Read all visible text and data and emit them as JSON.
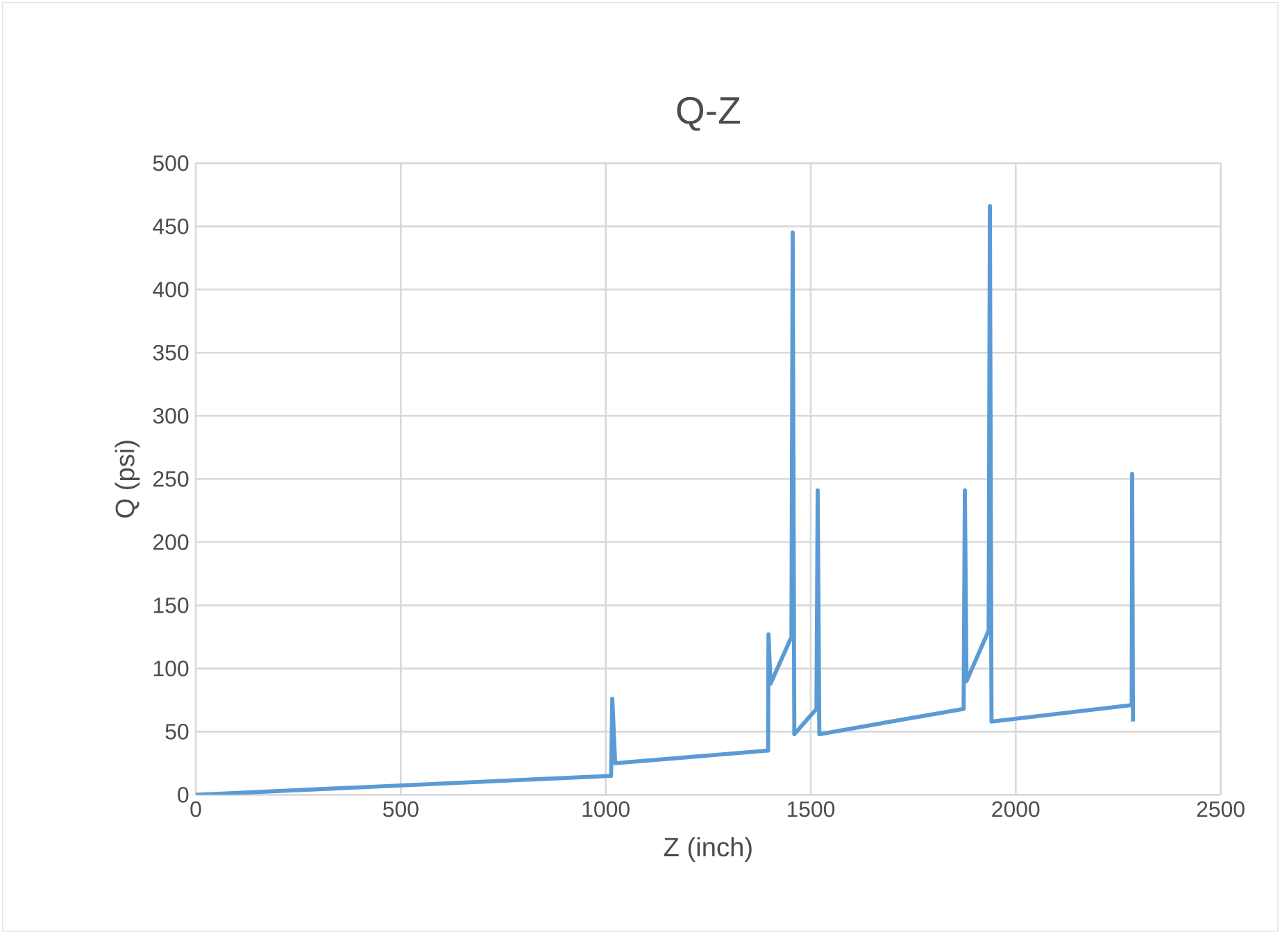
{
  "chart_data": {
    "type": "line",
    "title": "Q-Z",
    "xlabel": "Z (inch)",
    "ylabel": "Q (psi)",
    "x": [
      0,
      1013,
      1016,
      1023,
      1396,
      1397,
      1402,
      1453,
      1456,
      1460,
      1514,
      1517,
      1521,
      1873,
      1876,
      1880,
      1934,
      1937,
      1941,
      2283,
      2284,
      2286
    ],
    "series": [
      {
        "color": "#5b9bd5",
        "values": [
          0,
          15,
          76,
          25,
          35,
          127,
          88,
          125,
          445,
          48,
          68,
          241,
          48,
          68,
          241,
          90,
          130,
          466,
          58,
          71,
          254,
          58
        ]
      }
    ],
    "xlim": [
      0,
      2500
    ],
    "xticks": [
      0,
      500,
      1000,
      1500,
      2000,
      2500
    ],
    "ylim": [
      0,
      500
    ],
    "yticks": [
      0,
      50,
      100,
      150,
      200,
      250,
      300,
      350,
      400,
      450,
      500
    ],
    "grid": true,
    "marker": "none",
    "line_style": "solid"
  }
}
